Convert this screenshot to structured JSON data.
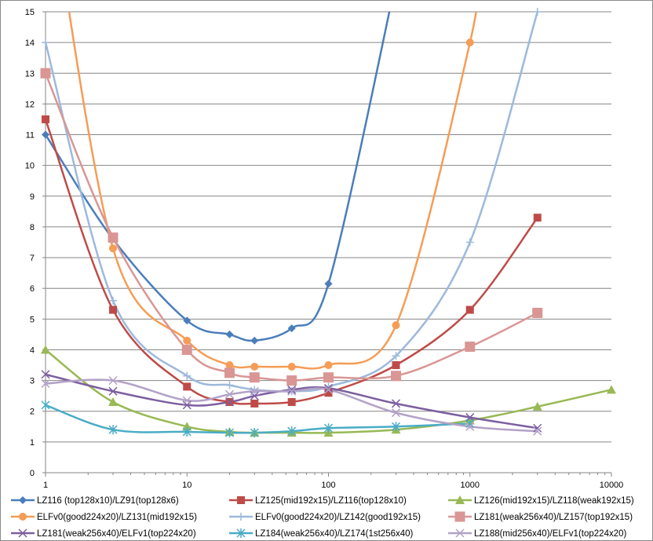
{
  "chart_data": {
    "type": "line",
    "xscale": "log",
    "xlim": [
      1,
      10000
    ],
    "ylim": [
      0,
      15
    ],
    "xticks": [
      1,
      10,
      100,
      1000,
      10000
    ],
    "xtick_labels": [
      "1",
      "10",
      "100",
      "1000",
      "10000"
    ],
    "yticks": [
      0,
      1,
      2,
      3,
      4,
      5,
      6,
      7,
      8,
      9,
      10,
      11,
      12,
      13,
      14,
      15
    ],
    "ytick_labels": [
      "0",
      "1",
      "2",
      "3",
      "4",
      "5",
      "6",
      "7",
      "8",
      "9",
      "10",
      "11",
      "12",
      "13",
      "14",
      "15"
    ],
    "grid": "horizontal",
    "legend_position": "bottom",
    "series": [
      {
        "name": "LZ116 (top128x10)/LZ91(top128x6)",
        "color": "#4a7ebb",
        "marker": "diamond",
        "points": [
          [
            1,
            11.0
          ],
          [
            3,
            7.6
          ],
          [
            10,
            4.95
          ],
          [
            20,
            4.5
          ],
          [
            30,
            4.3
          ],
          [
            55,
            4.7
          ],
          [
            100,
            6.15
          ],
          [
            300,
            16.0
          ]
        ]
      },
      {
        "name": "LZ125(mid192x15)/LZ116(top128x10)",
        "color": "#be4b48",
        "marker": "square",
        "points": [
          [
            1,
            11.5
          ],
          [
            3,
            5.3
          ],
          [
            10,
            2.8
          ],
          [
            20,
            2.3
          ],
          [
            30,
            2.25
          ],
          [
            55,
            2.3
          ],
          [
            100,
            2.6
          ],
          [
            300,
            3.5
          ],
          [
            1000,
            5.3
          ],
          [
            3000,
            8.3
          ]
        ]
      },
      {
        "name": "LZ126(mid192x15)/LZ118(weak192x15)",
        "color": "#98b954",
        "marker": "triangle",
        "points": [
          [
            1,
            4.0
          ],
          [
            3,
            2.3
          ],
          [
            10,
            1.5
          ],
          [
            20,
            1.33
          ],
          [
            30,
            1.3
          ],
          [
            55,
            1.3
          ],
          [
            100,
            1.3
          ],
          [
            300,
            1.4
          ],
          [
            1000,
            1.7
          ],
          [
            3000,
            2.15
          ],
          [
            10000,
            2.7
          ]
        ]
      },
      {
        "name": "ELFv0(good224x20)/LZ131(mid192x15)",
        "color": "#f59d56",
        "marker": "circle",
        "points": [
          [
            1,
            20.0
          ],
          [
            3,
            7.3
          ],
          [
            10,
            4.3
          ],
          [
            20,
            3.5
          ],
          [
            30,
            3.45
          ],
          [
            55,
            3.45
          ],
          [
            100,
            3.5
          ],
          [
            300,
            4.8
          ],
          [
            1000,
            14.0
          ],
          [
            1100,
            16.0
          ]
        ]
      },
      {
        "name": "ELFv0(good224x20)/LZ142(good192x15)",
        "color": "#9db9dc",
        "marker": "plus",
        "points": [
          [
            1,
            14.0
          ],
          [
            3,
            5.6
          ],
          [
            10,
            3.15
          ],
          [
            20,
            2.85
          ],
          [
            30,
            2.7
          ],
          [
            55,
            2.65
          ],
          [
            100,
            2.8
          ],
          [
            300,
            3.8
          ],
          [
            1000,
            7.5
          ],
          [
            3000,
            15.0
          ]
        ]
      },
      {
        "name": "LZ181(weak256x40)/LZ157(top192x15)",
        "color": "#d99694",
        "marker": "square",
        "points": [
          [
            1,
            13.0
          ],
          [
            3,
            7.65
          ],
          [
            10,
            4.0
          ],
          [
            20,
            3.25
          ],
          [
            30,
            3.1
          ],
          [
            55,
            3.0
          ],
          [
            100,
            3.1
          ],
          [
            300,
            3.15
          ],
          [
            1000,
            4.1
          ],
          [
            3000,
            5.2
          ]
        ]
      },
      {
        "name": "LZ181(weak256x40)/ELFv1(top224x20)",
        "color": "#7d5fa0",
        "marker": "x",
        "points": [
          [
            1,
            3.2
          ],
          [
            3,
            2.65
          ],
          [
            10,
            2.2
          ],
          [
            20,
            2.3
          ],
          [
            30,
            2.5
          ],
          [
            55,
            2.7
          ],
          [
            100,
            2.75
          ],
          [
            300,
            2.25
          ],
          [
            1000,
            1.8
          ],
          [
            3000,
            1.45
          ]
        ]
      },
      {
        "name": "LZ184(weak256x40)/LZ174(1st256x40)",
        "color": "#4aacc5",
        "marker": "star",
        "points": [
          [
            1,
            2.2
          ],
          [
            3,
            1.4
          ],
          [
            10,
            1.33
          ],
          [
            20,
            1.3
          ],
          [
            30,
            1.3
          ],
          [
            55,
            1.35
          ],
          [
            100,
            1.45
          ],
          [
            300,
            1.5
          ],
          [
            1000,
            1.6
          ]
        ]
      },
      {
        "name": "LZ188(mid256x40)/ELFv1(top224x20)",
        "color": "#b3a2c7",
        "marker": "x",
        "points": [
          [
            1,
            2.9
          ],
          [
            3,
            3.0
          ],
          [
            10,
            2.35
          ],
          [
            20,
            2.55
          ],
          [
            30,
            2.65
          ],
          [
            55,
            2.65
          ],
          [
            100,
            2.7
          ],
          [
            300,
            1.95
          ],
          [
            1000,
            1.5
          ],
          [
            3000,
            1.35
          ]
        ]
      }
    ]
  }
}
